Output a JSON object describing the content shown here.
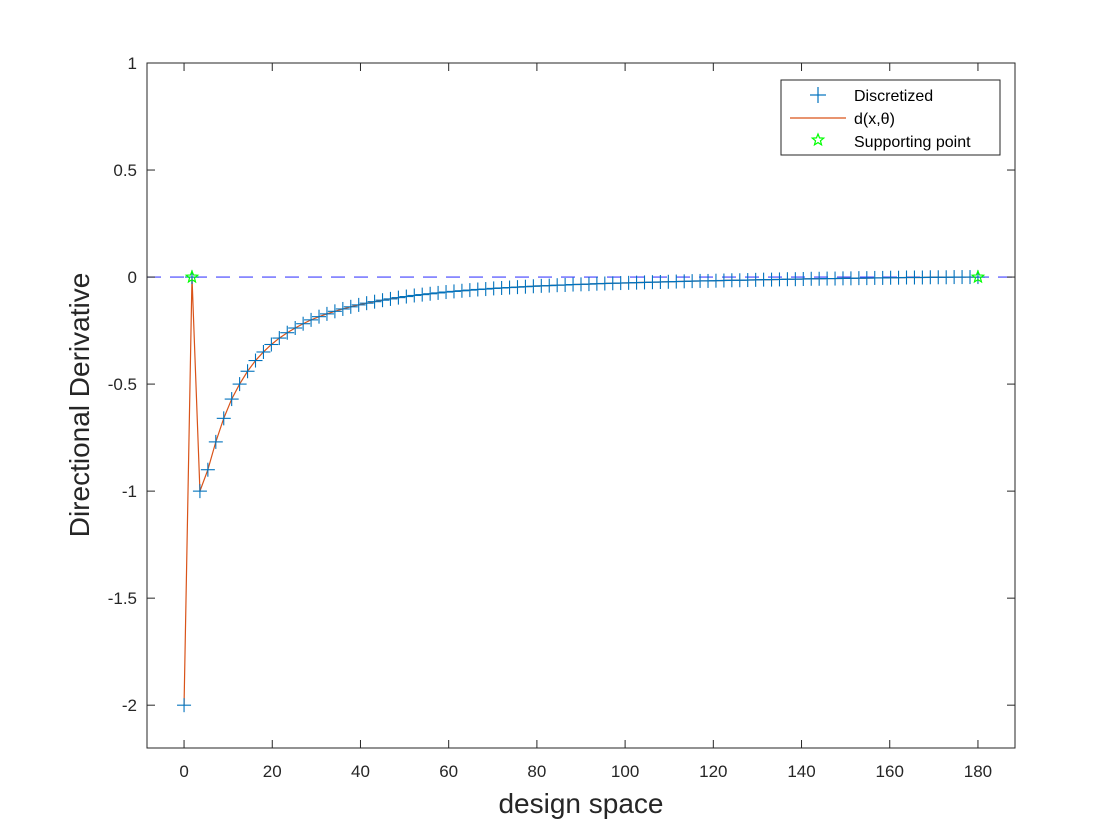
{
  "chart_data": {
    "type": "line",
    "title": "",
    "xlabel": "design space",
    "ylabel": "Directional Derivative",
    "xlim": [
      -8.4,
      188.4
    ],
    "ylim": [
      -2.2,
      1.0
    ],
    "xticks": [
      0,
      20,
      40,
      60,
      80,
      100,
      120,
      140,
      160,
      180
    ],
    "yticks": [
      1,
      0.5,
      0,
      -0.5,
      -1,
      -1.5,
      -2
    ],
    "ytick_labels": [
      "1",
      "0.5",
      "0",
      "-0.5",
      "-1",
      "-1.5",
      "-2"
    ],
    "grid": false,
    "legend_position": "top-right",
    "reference_line": {
      "y": 0,
      "style": "dashed",
      "color": "#0000ff"
    },
    "series": [
      {
        "name": "Discretized",
        "kind": "markers",
        "marker": "plus",
        "color": "#0072bd",
        "x": [
          0,
          1.8,
          3.6,
          5.4,
          7.2,
          9,
          10.8,
          12.6,
          14.4,
          16.2,
          18,
          19.8,
          21.6,
          23.4,
          25.2,
          27,
          28.8,
          30.6,
          32.4,
          34.2,
          36,
          37.8,
          39.6,
          41.4,
          43.2,
          45,
          46.8,
          48.6,
          50.4,
          52.2,
          54,
          55.8,
          57.6,
          59.4,
          61.2,
          63,
          64.8,
          66.6,
          68.4,
          70.2,
          72,
          73.8,
          75.6,
          77.4,
          79.2,
          81,
          82.8,
          84.6,
          86.4,
          88.2,
          90,
          91.8,
          93.6,
          95.4,
          97.2,
          99,
          100.8,
          102.6,
          104.4,
          106.2,
          108,
          109.8,
          111.6,
          113.4,
          115.2,
          117,
          118.8,
          120.6,
          122.4,
          124.2,
          126,
          127.8,
          129.6,
          131.4,
          133.2,
          135,
          136.8,
          138.6,
          140.4,
          142.2,
          144,
          145.8,
          147.6,
          149.4,
          151.2,
          153,
          154.8,
          156.6,
          158.4,
          160.2,
          162,
          163.8,
          165.6,
          167.4,
          169.2,
          171,
          172.8,
          174.6,
          176.4,
          178.2,
          180
        ],
        "y": [
          -2,
          0,
          -1,
          -0.9,
          -0.77,
          -0.66,
          -0.57,
          -0.5,
          -0.44,
          -0.39,
          -0.35,
          -0.315,
          -0.285,
          -0.26,
          -0.238,
          -0.218,
          -0.2,
          -0.185,
          -0.172,
          -0.16,
          -0.149,
          -0.139,
          -0.13,
          -0.122,
          -0.115,
          -0.108,
          -0.102,
          -0.096,
          -0.091,
          -0.086,
          -0.082,
          -0.078,
          -0.074,
          -0.07,
          -0.067,
          -0.064,
          -0.061,
          -0.058,
          -0.056,
          -0.053,
          -0.051,
          -0.049,
          -0.047,
          -0.045,
          -0.043,
          -0.041,
          -0.04,
          -0.038,
          -0.037,
          -0.035,
          -0.034,
          -0.033,
          -0.031,
          -0.03,
          -0.029,
          -0.028,
          -0.027,
          -0.026,
          -0.025,
          -0.024,
          -0.023,
          -0.022,
          -0.021,
          -0.02,
          -0.019,
          -0.018,
          -0.018,
          -0.017,
          -0.016,
          -0.015,
          -0.015,
          -0.014,
          -0.013,
          -0.012,
          -0.012,
          -0.011,
          -0.01,
          -0.01,
          -0.009,
          -0.008,
          -0.008,
          -0.007,
          -0.007,
          -0.006,
          -0.006,
          -0.005,
          -0.005,
          -0.004,
          -0.004,
          -0.003,
          -0.003,
          -0.002,
          -0.002,
          -0.002,
          -0.001,
          -0.001,
          -0.001,
          0,
          0,
          0,
          0
        ]
      },
      {
        "name": "d(x,θ)",
        "kind": "line",
        "color": "#d95319",
        "source": "Discretized"
      },
      {
        "name": "Supporting point",
        "kind": "markers",
        "marker": "pentagram",
        "color": "#00ff00",
        "x": [
          1.8,
          180
        ],
        "y": [
          0,
          0
        ]
      }
    ]
  }
}
